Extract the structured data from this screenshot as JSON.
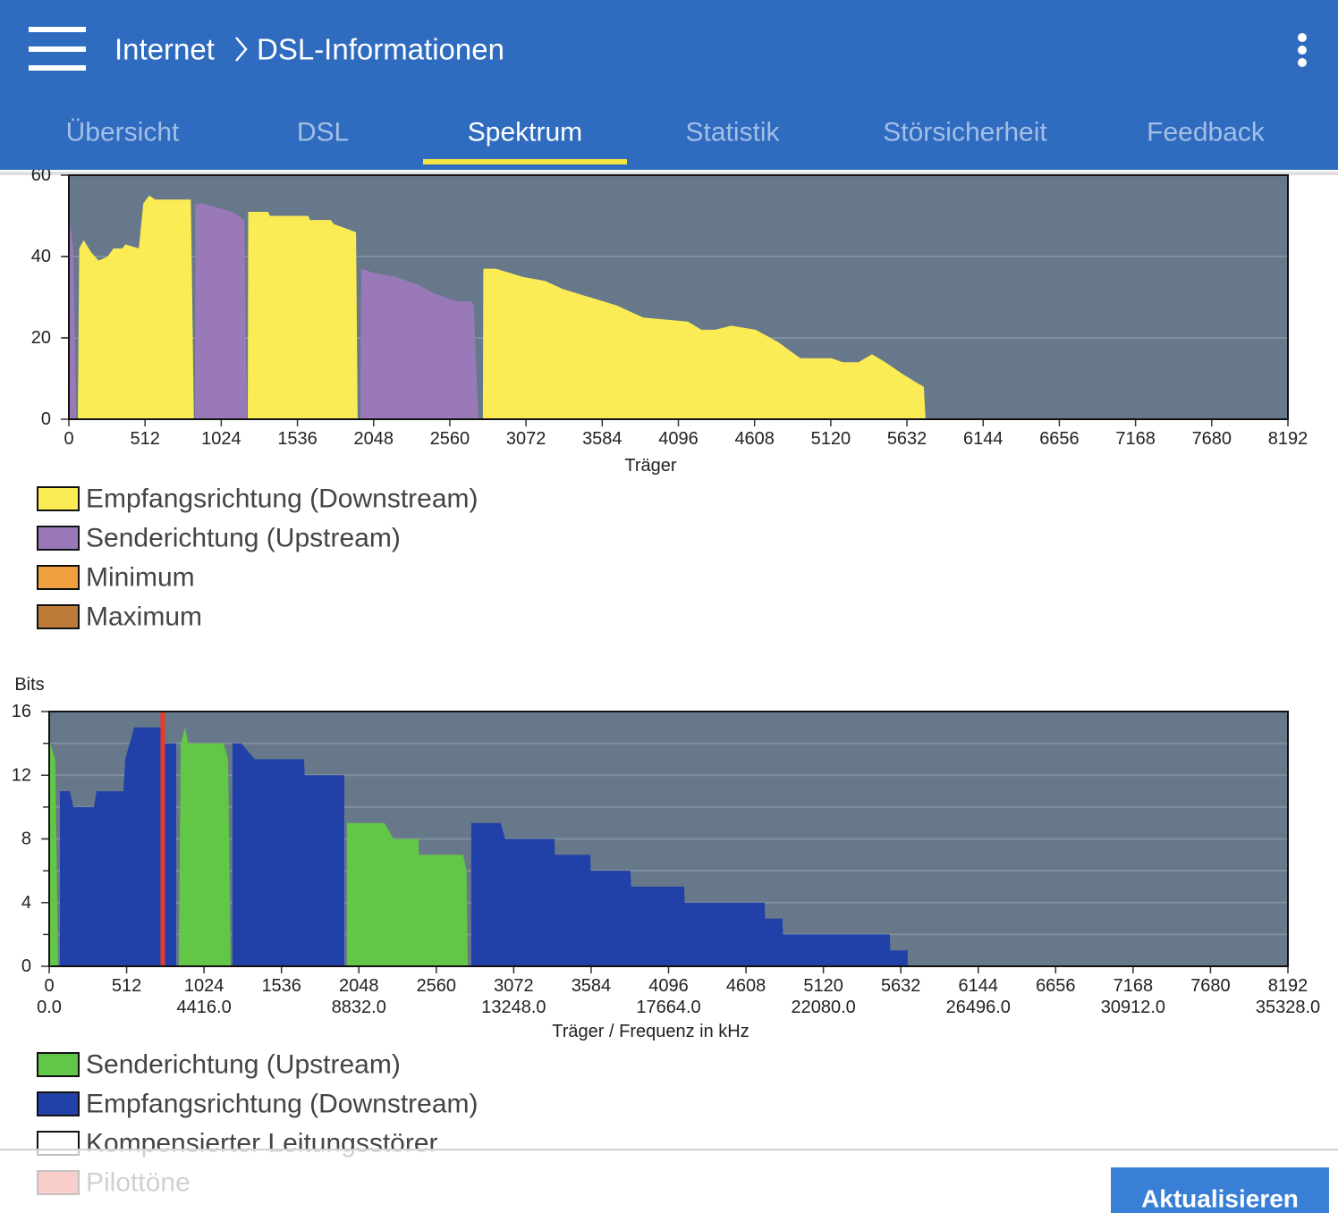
{
  "header": {
    "breadcrumb": [
      "Internet",
      "DSL-Informationen"
    ]
  },
  "tabs": [
    "Übersicht",
    "DSL",
    "Spektrum",
    "Statistik",
    "Störsicherheit",
    "Feedback"
  ],
  "active_tab": 2,
  "button": "Aktualisieren",
  "chart_data": [
    {
      "type": "area",
      "xlabel": "Träger",
      "xlim": [
        0,
        8192
      ],
      "xticks": [
        0,
        512,
        1024,
        1536,
        2048,
        2560,
        3072,
        3584,
        4096,
        4608,
        5120,
        5632,
        6144,
        6656,
        7168,
        7680,
        8192
      ],
      "ylim": [
        0,
        60
      ],
      "yticks": [
        0,
        20,
        40,
        60
      ],
      "ygrid": [
        20,
        40
      ],
      "series": [
        {
          "name": "Empfangsrichtung (Downstream)",
          "color": "#fbeb55",
          "x": [
            60,
            70,
            100,
            150,
            200,
            260,
            300,
            360,
            380,
            470,
            500,
            540,
            580,
            820,
            840,
            null,
            1202,
            1205,
            1340,
            1350,
            1610,
            1620,
            1760,
            1780,
            1930,
            1941,
            null,
            2782,
            2785,
            2870,
            3050,
            3200,
            3320,
            3500,
            3680,
            3860,
            4160,
            4250,
            4345,
            4450,
            4615,
            4766,
            4916,
            5126,
            5200,
            5306,
            5397,
            5487,
            5607,
            5697,
            5745,
            5757
          ],
          "values": [
            0,
            42,
            44,
            41,
            39,
            40,
            42,
            42,
            43,
            42,
            53,
            55,
            54,
            54,
            0,
            null,
            0,
            51,
            51,
            50,
            50,
            49,
            49,
            48,
            46,
            0,
            null,
            0,
            37,
            37,
            35,
            34,
            32,
            30,
            28,
            25,
            24,
            22,
            22,
            23,
            22,
            19,
            15,
            15,
            14,
            14,
            16,
            14,
            11,
            9,
            8,
            0
          ]
        },
        {
          "name": "Senderichtung (Upstream)",
          "color": "#9a79b8",
          "x": [
            0,
            0,
            30,
            50,
            null,
            847,
            850,
            900,
            1000,
            1100,
            1180,
            1196,
            null,
            1959,
            1965,
            2050,
            2200,
            2350,
            2450,
            2600,
            2700,
            2720,
            2752
          ],
          "values": [
            0,
            50,
            42,
            0,
            null,
            0,
            53,
            53,
            52,
            51,
            49,
            0,
            null,
            0,
            37,
            36,
            35,
            33,
            31,
            29,
            29,
            28,
            0
          ]
        },
        {
          "name": "Minimum",
          "color": "#f0a040",
          "x": [],
          "values": []
        },
        {
          "name": "Maximum",
          "color": "#bd7b3a",
          "x": [],
          "values": []
        }
      ]
    },
    {
      "type": "area",
      "ylabel": "Bits",
      "xlabel": "Träger / Frequenz in kHz",
      "xlim": [
        0,
        8192
      ],
      "xticks": [
        0,
        512,
        1024,
        1536,
        2048,
        2560,
        3072,
        3584,
        4096,
        4608,
        5120,
        5632,
        6144,
        6656,
        7168,
        7680,
        8192
      ],
      "xticks_freq": [
        {
          "value": 0,
          "label": "0.0"
        },
        {
          "value": 1024,
          "label": "4416.0"
        },
        {
          "value": 2048,
          "label": "8832.0"
        },
        {
          "value": 3072,
          "label": "13248.0"
        },
        {
          "value": 4096,
          "label": "17664.0"
        },
        {
          "value": 5120,
          "label": "22080.0"
        },
        {
          "value": 6144,
          "label": "26496.0"
        },
        {
          "value": 7168,
          "label": "30912.0"
        },
        {
          "value": 8192,
          "label": "35328.0"
        }
      ],
      "ylim": [
        0,
        16
      ],
      "yticks": [
        0,
        4,
        8,
        12,
        16
      ],
      "ygrid": [
        2,
        4,
        6,
        8,
        10,
        12,
        14
      ],
      "series": [
        {
          "name": "Senderichtung (Upstream)",
          "color": "#62c646",
          "x": [
            6,
            6,
            40,
            59,
            null,
            857,
            870,
            899,
            920,
            1153,
            1183,
            1200,
            null,
            1969,
            1969,
            2218,
            2277,
            2442,
            2446,
            2738,
            2760,
            2768
          ],
          "values": [
            0,
            14,
            13,
            0,
            null,
            0,
            14,
            15,
            14,
            14,
            13,
            0,
            null,
            0,
            9,
            9,
            8,
            8,
            7,
            7,
            6,
            0
          ]
        },
        {
          "name": "Empfangsrichtung (Downstream)",
          "color": "#2141a9",
          "x": [
            71,
            71,
            136,
            160,
            296,
            313,
            491,
            503,
            562,
            739,
            760,
            840,
            840,
            null,
            1212,
            1212,
            1271,
            1360,
            1685,
            1690,
            1951,
            1951,
            null,
            2791,
            2791,
            2986,
            3016,
            3341,
            3345,
            3578,
            3582,
            3844,
            3848,
            4199,
            4203,
            4731,
            4735,
            4849,
            4853,
            5559,
            5563,
            5677,
            5677
          ],
          "values": [
            0,
            11,
            11,
            10,
            10,
            11,
            11,
            13,
            15,
            15,
            14,
            14,
            0,
            null,
            0,
            14,
            14,
            13,
            13,
            12,
            12,
            0,
            null,
            0,
            9,
            9,
            8,
            8,
            7,
            7,
            6,
            6,
            5,
            5,
            4,
            4,
            3,
            3,
            2,
            2,
            1,
            1,
            0
          ]
        },
        {
          "name": "Kompensierter Leitungsstörer",
          "color": "#ffffff",
          "x": [],
          "values": []
        },
        {
          "name": "Pilottöne",
          "color": "#e8392a",
          "style": "bar",
          "x": [
            751
          ],
          "values": [
            16
          ]
        }
      ]
    }
  ]
}
